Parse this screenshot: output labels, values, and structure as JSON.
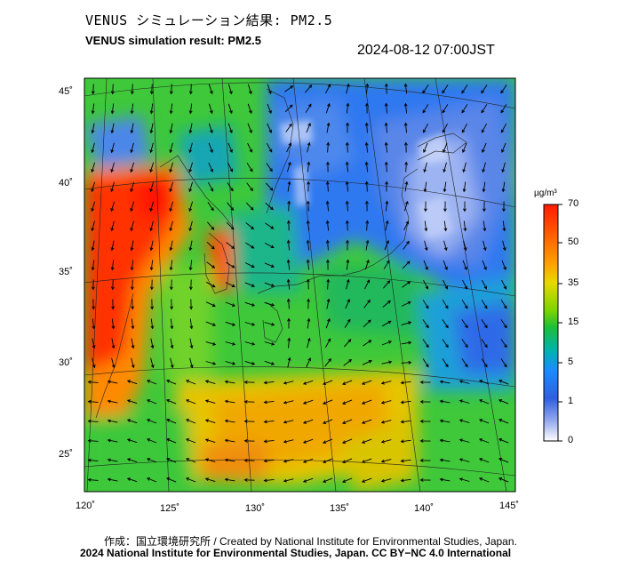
{
  "title_jp": "VENUS シミュレーション結果: PM2.5",
  "title_en": "VENUS simulation result: PM2.5",
  "timestamp": "2024-08-12 07:00JST",
  "lat_labels": [
    "45˚",
    "40˚",
    "35˚",
    "30˚",
    "25˚"
  ],
  "lon_labels": [
    "120˚",
    "125˚",
    "130˚",
    "135˚",
    "140˚",
    "145˚"
  ],
  "colorbar": {
    "unit": "µg/m³",
    "ticks": [
      "70",
      "50",
      "35",
      "15",
      "5",
      "1",
      "0"
    ],
    "colors": [
      "#ff0000",
      "#ff6a00",
      "#ffb800",
      "#e7e600",
      "#6fd400",
      "#00b04a",
      "#00c8c8",
      "#1e7bff",
      "#3560e0",
      "#8fa4f0",
      "#ffffff"
    ]
  },
  "footer": {
    "credit": "作成：国立環境研究所 / Created by National Institute for Environmental Studies, Japan.",
    "copyright": "2024 National Institute for Environmental Studies, Japan. CC BY−NC 4.0 International"
  }
}
